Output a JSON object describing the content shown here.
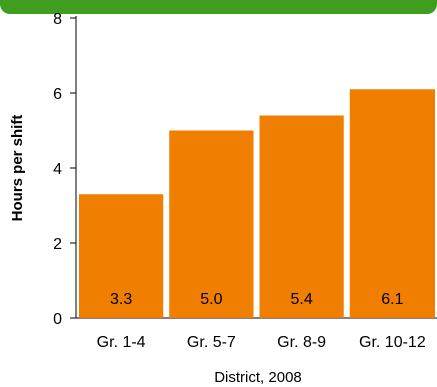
{
  "chart_data": {
    "type": "bar",
    "categories": [
      "Gr. 1-4",
      "Gr. 5-7",
      "Gr. 8-9",
      "Gr. 10-12"
    ],
    "values": [
      3.3,
      5.0,
      5.4,
      6.1
    ],
    "value_labels": [
      "3.3",
      "5.0",
      "5.4",
      "6.1"
    ],
    "title": "",
    "xlabel": "District, 2008",
    "ylabel": "Hours per shift",
    "ylim": [
      0,
      8
    ],
    "yticks": [
      0,
      2,
      4,
      6,
      8
    ],
    "grid": false,
    "legend": "none",
    "colors": {
      "bar": "#f07e00",
      "header_band": "#3f9e1e"
    }
  }
}
